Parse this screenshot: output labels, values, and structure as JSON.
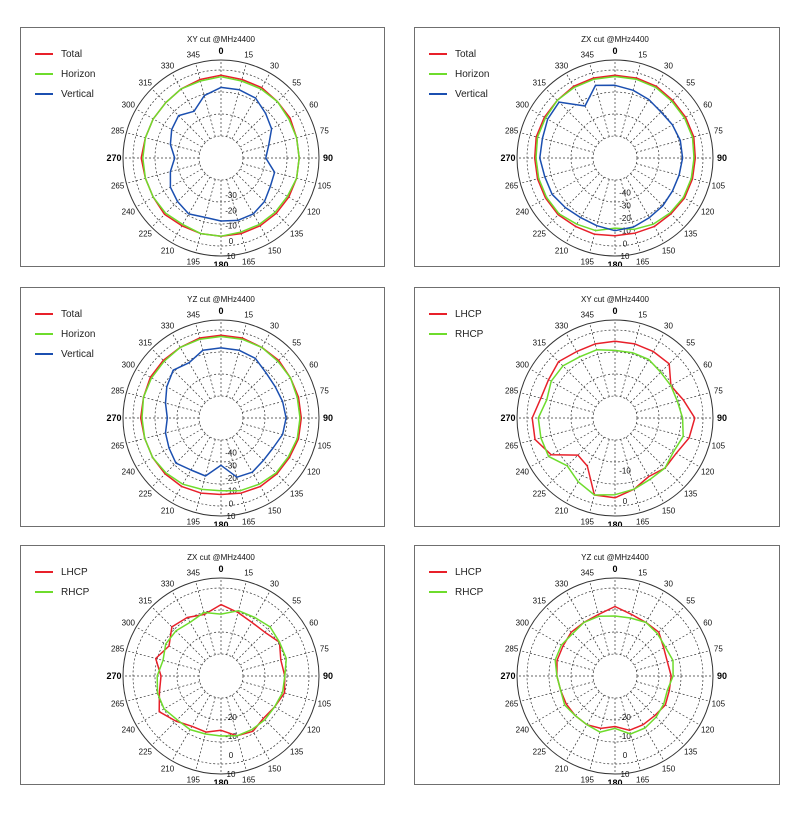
{
  "chart_data": [
    {
      "type": "polar-line",
      "title": "XY cut @MHz4400",
      "angle_labels": [
        "0",
        "15",
        "30",
        "55",
        "60",
        "75",
        "90",
        "105",
        "120",
        "135",
        "150",
        "165",
        "180",
        "195",
        "210",
        "225",
        "240",
        "265",
        "270",
        "285",
        "300",
        "315",
        "330",
        "345"
      ],
      "r_labels": [
        "-30",
        "-20",
        "-10",
        "0",
        "10"
      ],
      "rlim": [
        -40,
        10
      ],
      "series": [
        {
          "name": "Total",
          "color": "#e8202a",
          "values": [
            0,
            -1,
            -1,
            -2,
            -2,
            -3,
            -3,
            -3,
            -3,
            -3,
            -3,
            -3,
            -3,
            -3,
            -3,
            -2,
            -3,
            -3,
            -2,
            -3,
            -3,
            -3,
            -2,
            -1
          ]
        },
        {
          "name": "Horizon",
          "color": "#6edc2c",
          "values": [
            -1,
            -2,
            -2,
            -2,
            -3,
            -3,
            -3,
            -3,
            -4,
            -4,
            -4,
            -4,
            -3,
            -3,
            -4,
            -3,
            -3,
            -3,
            -3,
            -3,
            -3,
            -3,
            -2,
            -2
          ]
        },
        {
          "name": "Vertical",
          "color": "#1b4fb0",
          "values": [
            -8,
            -8,
            -9,
            -13,
            -16,
            -22,
            -25,
            -18,
            -17,
            -14,
            -12,
            -12,
            -13,
            -14,
            -12,
            -14,
            -16,
            -20,
            -24,
            -20,
            -17,
            -15,
            -19,
            -12
          ]
        }
      ]
    },
    {
      "type": "polar-line",
      "title": "ZX cut @MHz4400",
      "angle_labels": [
        "0",
        "15",
        "30",
        "55",
        "60",
        "75",
        "90",
        "105",
        "120",
        "135",
        "150",
        "165",
        "180",
        "195",
        "210",
        "225",
        "240",
        "265",
        "270",
        "285",
        "300",
        "315",
        "330",
        "345"
      ],
      "r_labels": [
        "-40",
        "-30",
        "-20",
        "-10",
        "0",
        "10"
      ],
      "rlim": [
        -50,
        10
      ],
      "series": [
        {
          "name": "Total",
          "color": "#e8202a",
          "values": [
            -2,
            -2,
            -2,
            -3,
            -3,
            -3,
            -4,
            -4,
            -4,
            -5,
            -5,
            -6,
            -6,
            -5,
            -5,
            -4,
            -4,
            -4,
            -4,
            -3,
            -3,
            -3,
            -2,
            -2
          ]
        },
        {
          "name": "Horizon",
          "color": "#6edc2c",
          "values": [
            -3,
            -3,
            -3,
            -4,
            -4,
            -4,
            -5,
            -5,
            -5,
            -6,
            -7,
            -9,
            -12,
            -8,
            -7,
            -5,
            -5,
            -5,
            -5,
            -4,
            -4,
            -3,
            -3,
            -3
          ]
        },
        {
          "name": "Vertical",
          "color": "#1b4fb0",
          "values": [
            -10,
            -12,
            -14,
            -16,
            -15,
            -14,
            -14,
            -15,
            -15,
            -14,
            -13,
            -11,
            -10,
            -12,
            -13,
            -12,
            -10,
            -10,
            -8,
            -8,
            -6,
            -5,
            -20,
            -8
          ]
        }
      ]
    },
    {
      "type": "polar-line",
      "title": "YZ cut @MHz4400",
      "angle_labels": [
        "0",
        "15",
        "30",
        "55",
        "60",
        "75",
        "90",
        "105",
        "120",
        "135",
        "150",
        "165",
        "180",
        "195",
        "210",
        "225",
        "240",
        "265",
        "270",
        "285",
        "300",
        "315",
        "330",
        "345"
      ],
      "r_labels": [
        "-40",
        "-30",
        "-20",
        "-10",
        "0",
        "10"
      ],
      "rlim": [
        -50,
        10
      ],
      "series": [
        {
          "name": "Total",
          "color": "#e8202a",
          "values": [
            -2,
            -2,
            -3,
            -3,
            -4,
            -4,
            -4,
            -4,
            -5,
            -5,
            -5,
            -6,
            -7,
            -6,
            -5,
            -5,
            -5,
            -5,
            -4,
            -4,
            -3,
            -3,
            -3,
            -2
          ]
        },
        {
          "name": "Horizon",
          "color": "#6edc2c",
          "values": [
            -3,
            -3,
            -3,
            -4,
            -4,
            -5,
            -5,
            -5,
            -6,
            -6,
            -7,
            -8,
            -10,
            -9,
            -7,
            -6,
            -5,
            -5,
            -5,
            -4,
            -4,
            -4,
            -3,
            -3
          ]
        },
        {
          "name": "Vertical",
          "color": "#1b4fb0",
          "values": [
            -12,
            -12,
            -13,
            -17,
            -18,
            -17,
            -16,
            -17,
            -20,
            -20,
            -18,
            -19,
            -30,
            -20,
            -20,
            -17,
            -20,
            -22,
            -25,
            -22,
            -18,
            -14,
            -17,
            -12
          ]
        }
      ]
    },
    {
      "type": "polar-line",
      "title": "XY cut @MHz4400",
      "angle_labels": [
        "0",
        "15",
        "30",
        "55",
        "60",
        "75",
        "90",
        "105",
        "120",
        "135",
        "150",
        "165",
        "180",
        "195",
        "210",
        "225",
        "240",
        "265",
        "270",
        "285",
        "300",
        "315",
        "330",
        "345"
      ],
      "r_labels": [
        "-10",
        "0"
      ],
      "rlim": [
        -20,
        5
      ],
      "series": [
        {
          "name": "LHCP",
          "color": "#e8202a",
          "values": [
            -2,
            -2,
            -2,
            -2,
            -6,
            -4,
            -1,
            -2,
            -4,
            -4,
            -5,
            -3,
            -1,
            -1,
            -9,
            -10,
            -3,
            0,
            0,
            -2,
            -2,
            -1,
            -2,
            -2
          ]
        },
        {
          "name": "RHCP",
          "color": "#6edc2c",
          "values": [
            -5,
            -5,
            -5,
            -6,
            -6,
            -6,
            -5,
            -4,
            -5,
            -4,
            -4,
            -3,
            -2,
            -1,
            -3,
            -5,
            -2,
            -2,
            -2,
            -4,
            -3,
            -3,
            -4,
            -4
          ]
        }
      ]
    },
    {
      "type": "polar-line",
      "title": "ZX cut @MHz4400",
      "angle_labels": [
        "0",
        "15",
        "30",
        "55",
        "60",
        "75",
        "90",
        "105",
        "120",
        "135",
        "150",
        "165",
        "180",
        "195",
        "210",
        "225",
        "240",
        "265",
        "270",
        "285",
        "300",
        "315",
        "330",
        "345"
      ],
      "r_labels": [
        "-20",
        "-10",
        "0",
        "10"
      ],
      "rlim": [
        -30,
        10
      ],
      "series": [
        {
          "name": "LHCP",
          "color": "#e8202a",
          "values": [
            -4,
            -7,
            -9,
            -9,
            -6,
            -9,
            -8,
            -7,
            -9,
            -10,
            -8,
            -9,
            -13,
            -11,
            -11,
            -8,
            -4,
            -8,
            -10,
            -6,
            -10,
            -5,
            -6,
            -8
          ]
        },
        {
          "name": "RHCP",
          "color": "#6edc2c",
          "values": [
            -9,
            -6,
            -6,
            -5,
            -6,
            -6,
            -8,
            -8,
            -9,
            -9,
            -9,
            -9,
            -10,
            -10,
            -9,
            -9,
            -7,
            -7,
            -8,
            -10,
            -8,
            -8,
            -9,
            -7
          ]
        }
      ]
    },
    {
      "type": "polar-line",
      "title": "YZ cut @MHz4400",
      "angle_labels": [
        "0",
        "15",
        "30",
        "55",
        "60",
        "75",
        "90",
        "105",
        "120",
        "135",
        "150",
        "165",
        "180",
        "195",
        "210",
        "225",
        "240",
        "265",
        "270",
        "285",
        "300",
        "315",
        "330",
        "345"
      ],
      "r_labels": [
        "-20",
        "-10",
        "0",
        "10"
      ],
      "rlim": [
        -30,
        10
      ],
      "series": [
        {
          "name": "LHCP",
          "color": "#e8202a",
          "values": [
            -5,
            -8,
            -9,
            -9,
            -12,
            -13,
            -12,
            -12,
            -11,
            -12,
            -12,
            -12,
            -15,
            -13,
            -12,
            -12,
            -12,
            -12,
            -11,
            -10,
            -10,
            -9,
            -9,
            -8
          ]
        },
        {
          "name": "RHCP",
          "color": "#6edc2c",
          "values": [
            -10,
            -10,
            -9,
            -10,
            -11,
            -10,
            -11,
            -13,
            -12,
            -11,
            -10,
            -10,
            -14,
            -11,
            -12,
            -12,
            -11,
            -12,
            -11,
            -9,
            -9,
            -10,
            -9,
            -9
          ]
        }
      ]
    }
  ]
}
